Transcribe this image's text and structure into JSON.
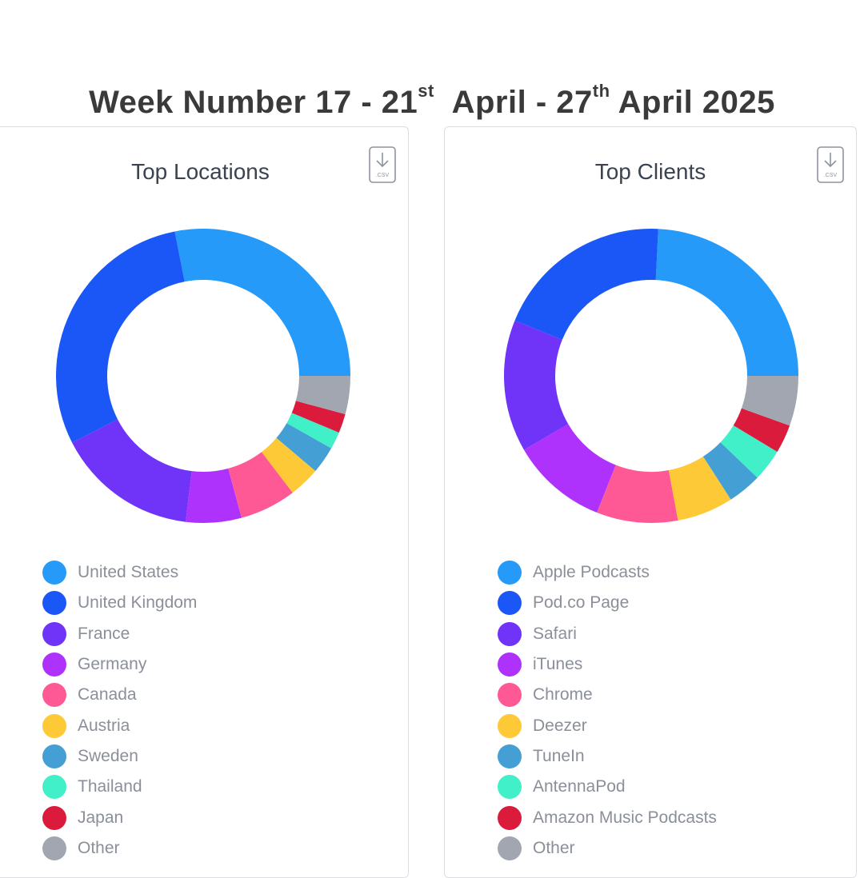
{
  "header": {
    "title_part1": "Week Number 17 - 21",
    "title_sup1": "st",
    "title_part2": "April - 27",
    "title_sup2": "th",
    "title_part3": "April 2025"
  },
  "icons": {
    "download": "download-csv-icon",
    "csv_label": ".CSV"
  },
  "chart_data": [
    {
      "type": "pie",
      "title": "Top Locations",
      "categories": [
        "United States",
        "United Kingdom",
        "France",
        "Germany",
        "Canada",
        "Austria",
        "Sweden",
        "Thailand",
        "Japan",
        "Other"
      ],
      "values": [
        28.1,
        29.4,
        15.6,
        6.1,
        6.2,
        3.4,
        3.0,
        1.9,
        2.1,
        4.2
      ],
      "colors": [
        "#259af9",
        "#1a57f6",
        "#7033f8",
        "#af32fc",
        "#fe5994",
        "#fec937",
        "#449fd4",
        "#41f0c9",
        "#db1b3b",
        "#a1a6b1"
      ],
      "legend": "bottom-left"
    },
    {
      "type": "pie",
      "title": "Top Clients",
      "categories": [
        "Apple Podcasts",
        "Pod.co Page",
        "Safari",
        "iTunes",
        "Chrome",
        "Deezer",
        "TuneIn",
        "AntennaPod",
        "Amazon Music Podcasts",
        "Other"
      ],
      "values": [
        24.7,
        20.0,
        14.8,
        10.8,
        9.1,
        6.3,
        3.8,
        3.6,
        3.2,
        5.6
      ],
      "colors": [
        "#259af9",
        "#1a57f6",
        "#7033f8",
        "#af32fc",
        "#fe5994",
        "#fec937",
        "#449fd4",
        "#41f0c9",
        "#db1b3b",
        "#a1a6b1"
      ],
      "legend": "bottom-left"
    }
  ]
}
